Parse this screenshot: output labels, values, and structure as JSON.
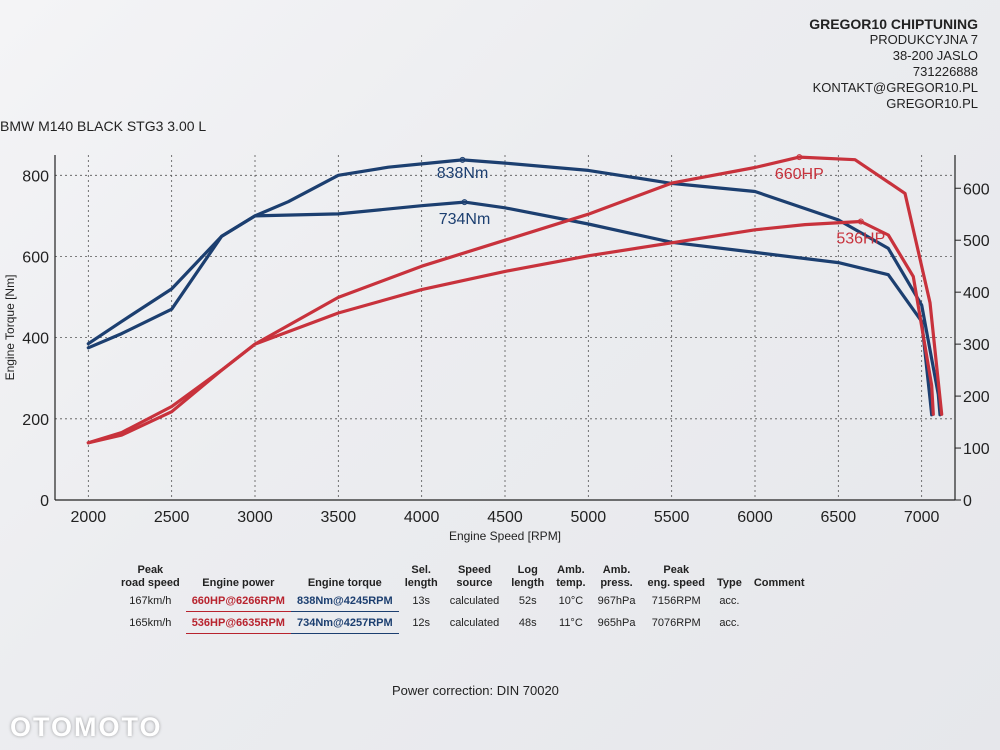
{
  "company": {
    "name": "GREGOR10 CHIPTUNING",
    "street": "PRODUKCYJNA 7",
    "city": "38-200 JASLO",
    "phone": "731226888",
    "email": "KONTAKT@GREGOR10.PL",
    "website": "GREGOR10.PL"
  },
  "vehicle": "BMW M140 BLACK STG3 3.00 L",
  "chart_data": {
    "type": "line",
    "xlabel": "Engine Speed [RPM]",
    "ylabel_left": "Engine Torque [Nm]",
    "xlim": [
      1800,
      7200
    ],
    "ylim_left": [
      0,
      850
    ],
    "ylim_right": [
      0,
      664
    ],
    "x_ticks": [
      2000,
      2500,
      3000,
      3500,
      4000,
      4500,
      5000,
      5500,
      6000,
      6500,
      7000
    ],
    "y_ticks_left": [
      0,
      200,
      400,
      600,
      800
    ],
    "y_ticks_right": [
      0,
      100,
      200,
      300,
      400,
      500,
      600
    ],
    "grid": true,
    "series": [
      {
        "name": "838Nm",
        "axis": "left",
        "color": "#1c3f70",
        "points": [
          [
            2000,
            385
          ],
          [
            2200,
            440
          ],
          [
            2500,
            520
          ],
          [
            2800,
            650
          ],
          [
            3000,
            700
          ],
          [
            3200,
            735
          ],
          [
            3500,
            800
          ],
          [
            3800,
            820
          ],
          [
            4000,
            828
          ],
          [
            4245,
            838
          ],
          [
            4500,
            830
          ],
          [
            5000,
            812
          ],
          [
            5500,
            780
          ],
          [
            6000,
            760
          ],
          [
            6500,
            690
          ],
          [
            6800,
            620
          ],
          [
            7000,
            480
          ],
          [
            7100,
            260
          ],
          [
            7110,
            210
          ]
        ]
      },
      {
        "name": "734Nm",
        "axis": "left",
        "color": "#1c3f70",
        "points": [
          [
            2000,
            375
          ],
          [
            2200,
            410
          ],
          [
            2500,
            470
          ],
          [
            2800,
            650
          ],
          [
            3000,
            700
          ],
          [
            3500,
            705
          ],
          [
            4000,
            725
          ],
          [
            4257,
            734
          ],
          [
            4500,
            720
          ],
          [
            5000,
            680
          ],
          [
            5500,
            635
          ],
          [
            6000,
            610
          ],
          [
            6500,
            585
          ],
          [
            6800,
            555
          ],
          [
            7000,
            440
          ],
          [
            7050,
            250
          ],
          [
            7060,
            210
          ]
        ]
      },
      {
        "name": "660HP",
        "axis": "right",
        "color": "#c8323c",
        "points": [
          [
            2000,
            110
          ],
          [
            2200,
            125
          ],
          [
            2500,
            170
          ],
          [
            2800,
            250
          ],
          [
            3000,
            300
          ],
          [
            3500,
            390
          ],
          [
            4000,
            450
          ],
          [
            4500,
            500
          ],
          [
            5000,
            550
          ],
          [
            5500,
            610
          ],
          [
            6000,
            640
          ],
          [
            6266,
            660
          ],
          [
            6600,
            655
          ],
          [
            6900,
            590
          ],
          [
            7050,
            380
          ],
          [
            7120,
            165
          ]
        ]
      },
      {
        "name": "536HP",
        "axis": "right",
        "color": "#c8323c",
        "points": [
          [
            2000,
            110
          ],
          [
            2200,
            130
          ],
          [
            2500,
            180
          ],
          [
            2800,
            250
          ],
          [
            3000,
            300
          ],
          [
            3500,
            360
          ],
          [
            4000,
            405
          ],
          [
            4500,
            440
          ],
          [
            5000,
            470
          ],
          [
            5500,
            495
          ],
          [
            6000,
            520
          ],
          [
            6300,
            530
          ],
          [
            6635,
            536
          ],
          [
            6800,
            510
          ],
          [
            6950,
            430
          ],
          [
            7060,
            220
          ],
          [
            7070,
            165
          ]
        ]
      }
    ]
  },
  "table": {
    "headers": [
      "Peak\nroad speed",
      "Engine power",
      "Engine torque",
      "Sel.\nlength",
      "Speed\nsource",
      "Log\nlength",
      "Amb.\ntemp.",
      "Amb.\npress.",
      "Peak\neng. speed",
      "Type",
      "Comment"
    ],
    "rows": [
      [
        "167km/h",
        "660HP@6266RPM",
        "838Nm@4245RPM",
        "13s",
        "calculated",
        "52s",
        "10°C",
        "967hPa",
        "7156RPM",
        "acc.",
        ""
      ],
      [
        "165km/h",
        "536HP@6635RPM",
        "734Nm@4257RPM",
        "12s",
        "calculated",
        "48s",
        "11°C",
        "965hPa",
        "7076RPM",
        "acc.",
        ""
      ]
    ]
  },
  "correction": "Power correction: DIN 70020",
  "watermark": "OTOMOTO"
}
